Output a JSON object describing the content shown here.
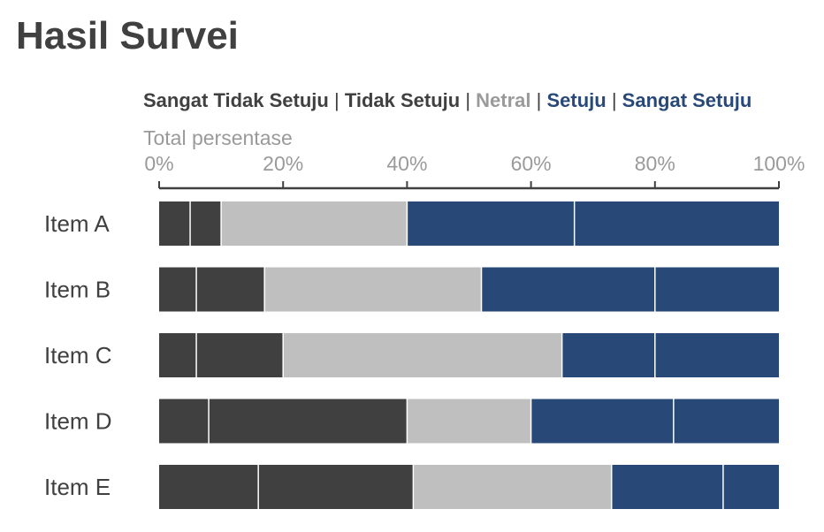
{
  "chart_data": {
    "type": "bar",
    "orientation": "horizontal",
    "stacked": true,
    "title": "Hasil Survei",
    "xlabel": "Total persentase",
    "xlim": [
      0,
      100
    ],
    "x_ticks": [
      "0%",
      "20%",
      "40%",
      "60%",
      "80%",
      "100%"
    ],
    "legend_position": "top",
    "categories": [
      "Item A",
      "Item B",
      "Item C",
      "Item D",
      "Item E"
    ],
    "series": [
      {
        "name": "Sangat Tidak Setuju",
        "color": "#404040",
        "values": [
          5,
          6,
          6,
          8,
          16
        ]
      },
      {
        "name": "Tidak Setuju",
        "color": "#404040",
        "values": [
          5,
          11,
          14,
          32,
          25
        ]
      },
      {
        "name": "Netral",
        "color": "#bfbfbf",
        "values": [
          30,
          35,
          45,
          20,
          32
        ]
      },
      {
        "name": "Setuju",
        "color": "#284878",
        "values": [
          27,
          28,
          15,
          23,
          18
        ]
      },
      {
        "name": "Sangat Setuju",
        "color": "#284878",
        "values": [
          33,
          20,
          20,
          17,
          9
        ]
      }
    ],
    "legend_separator": "|",
    "legend_text_colors": [
      "#404040",
      "#404040",
      "#9a9a9a",
      "#284878",
      "#284878"
    ],
    "grid": false
  }
}
